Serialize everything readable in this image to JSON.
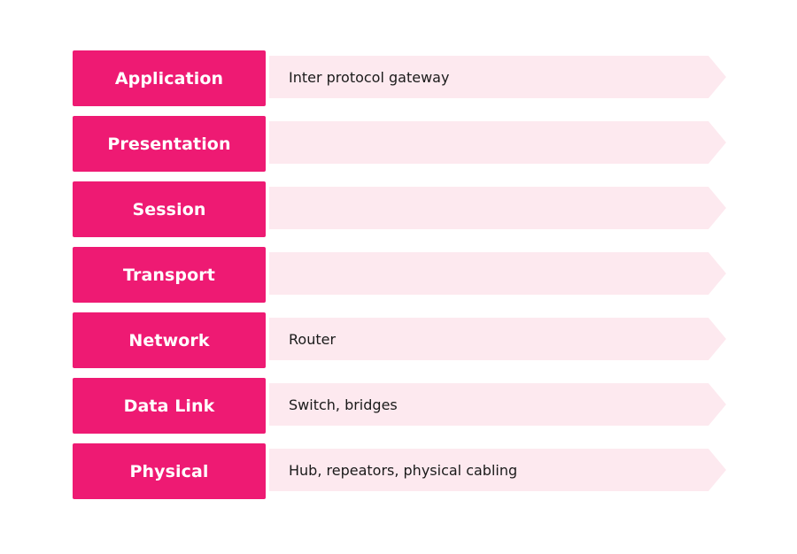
{
  "colors": {
    "label_background": "#ee1a73",
    "label_text": "#ffffff",
    "arrow_background": "#fde9ef",
    "description_text": "#1a1a1a"
  },
  "layers": [
    {
      "name": "Application",
      "description": "Inter protocol gateway"
    },
    {
      "name": "Presentation",
      "description": ""
    },
    {
      "name": "Session",
      "description": ""
    },
    {
      "name": "Transport",
      "description": ""
    },
    {
      "name": "Network",
      "description": "Router"
    },
    {
      "name": "Data Link",
      "description": "Switch, bridges"
    },
    {
      "name": "Physical",
      "description": "Hub, repeators, physical cabling"
    }
  ]
}
